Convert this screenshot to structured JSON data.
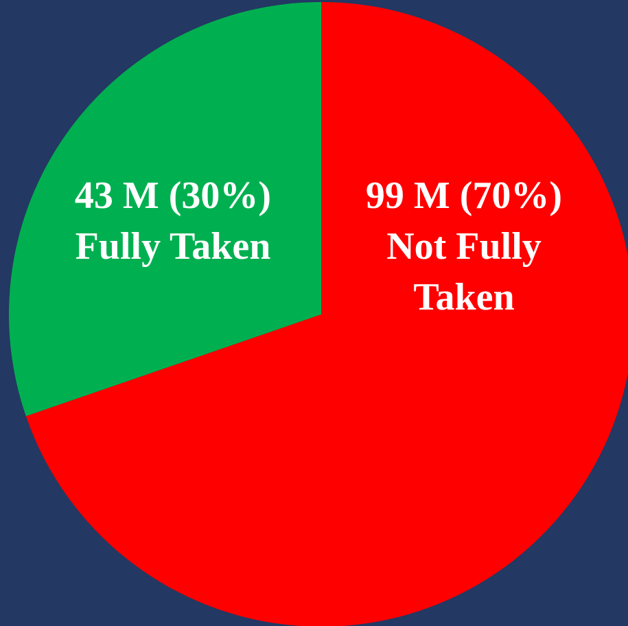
{
  "chart_data": {
    "type": "pie",
    "categories": [
      "Not Fully Taken",
      "Fully Taken"
    ],
    "values": [
      99,
      43
    ],
    "value_labels": [
      "99 M (70%)",
      "43 M (30%)"
    ],
    "colors": [
      "#ff0000",
      "#00b050"
    ]
  }
}
